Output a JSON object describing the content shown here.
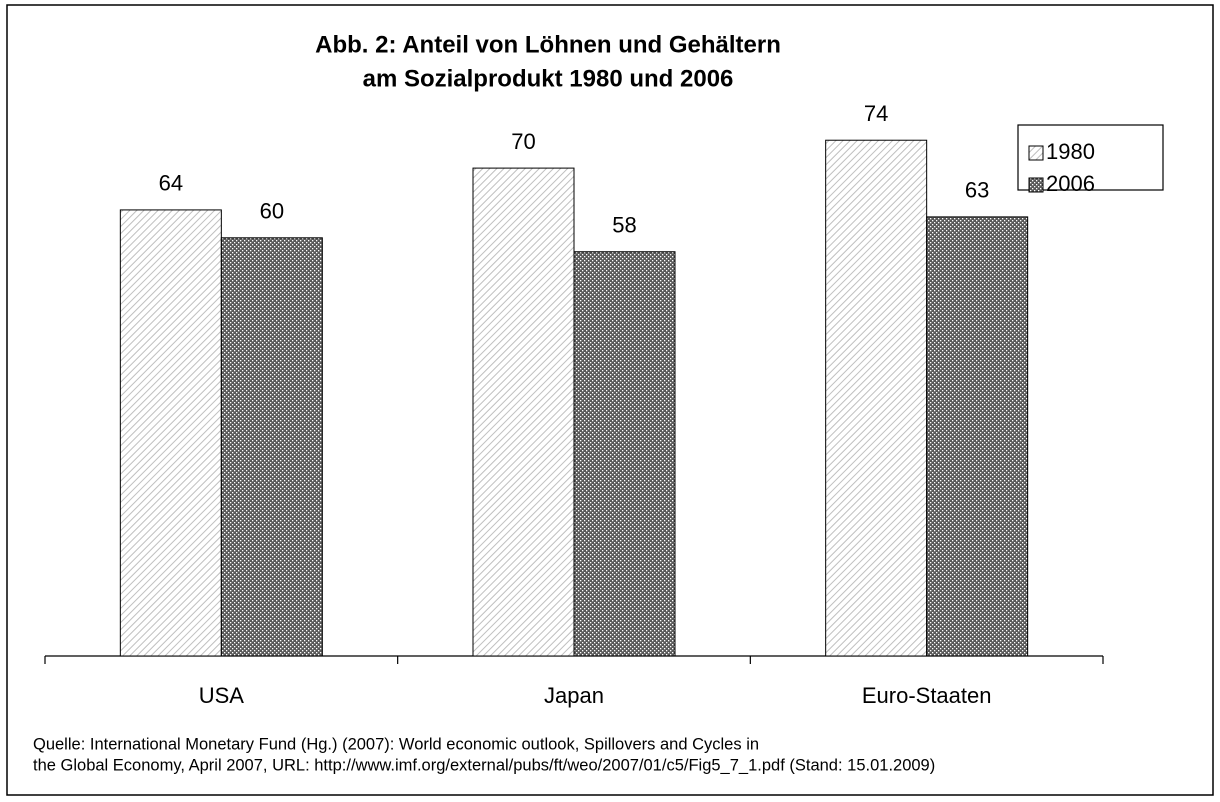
{
  "chart_data": {
    "type": "bar",
    "title": [
      "Abb. 2: Anteil von Löhnen und Gehältern",
      "am Sozialprodukt 1980 und 2006"
    ],
    "categories": [
      "USA",
      "Japan",
      "Euro-Staaten"
    ],
    "series": [
      {
        "name": "1980",
        "color": "#bfbfbf",
        "values": [
          64,
          70,
          74
        ]
      },
      {
        "name": "2006",
        "color": "#595959",
        "values": [
          60,
          58,
          63
        ]
      }
    ],
    "legend": "top-right",
    "source": [
      "Quelle: International Monetary Fund (Hg.) (2007): World economic outlook, Spillovers and Cycles in",
      "the Global Economy, April 2007, URL:  http://www.imf.org/external/pubs/ft/weo/2007/01/c5/Fig5_7_1.pdf (Stand: 15.01.2009)"
    ]
  }
}
